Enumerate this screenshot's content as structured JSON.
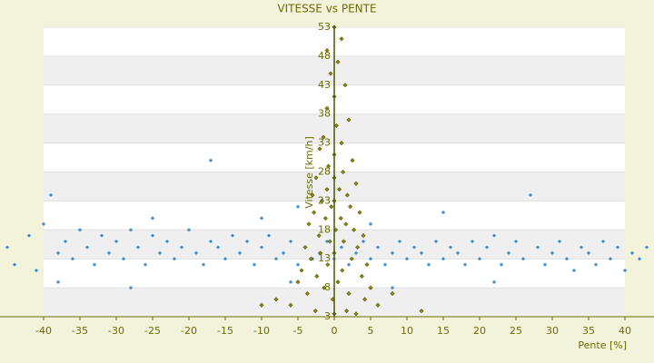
{
  "chart_data": {
    "type": "scatter",
    "title": "VITESSE vs PENTE",
    "x_label": "Pente [%]",
    "y_label": "Vitesse [km/h]",
    "xlim": [
      -46,
      44
    ],
    "xticks": [
      -40,
      -35,
      -30,
      -25,
      -20,
      -15,
      -10,
      -5,
      0,
      5,
      10,
      15,
      20,
      25,
      30,
      35,
      40
    ],
    "ylim": [
      3,
      53
    ],
    "yticks": [
      3,
      8,
      13,
      18,
      23,
      28,
      33,
      38,
      43,
      48,
      53
    ],
    "grid": true,
    "series": [
      {
        "color": "#3a8fd8",
        "x": [
          -45,
          -44,
          -42,
          -41,
          -40,
          -39,
          -38,
          -37,
          -36,
          -35,
          -34,
          -33,
          -32,
          -31,
          -30,
          -29,
          -28,
          -27,
          -26,
          -25,
          -24,
          -23,
          -22,
          -21,
          -20,
          -19,
          -18,
          -17,
          -17,
          -16,
          -15,
          -14,
          -13,
          -12,
          -11,
          -10,
          -9,
          -8,
          -7,
          -6,
          -5,
          -4,
          -3,
          -2,
          -1,
          0,
          1,
          2,
          3,
          4,
          5,
          6,
          7,
          8,
          9,
          10,
          11,
          12,
          13,
          14,
          15,
          16,
          17,
          18,
          19,
          20,
          21,
          22,
          23,
          24,
          25,
          26,
          27,
          28,
          29,
          30,
          31,
          32,
          33,
          34,
          35,
          36,
          37,
          38,
          39,
          40,
          41,
          42,
          43,
          -10,
          -5,
          5,
          15,
          -25,
          -38,
          -28,
          -6,
          8,
          22
        ],
        "values": [
          15,
          12,
          17,
          11,
          19,
          24,
          14,
          16,
          13,
          18,
          15,
          12,
          17,
          14,
          16,
          13,
          18,
          15,
          12,
          17,
          14,
          16,
          13,
          15,
          18,
          14,
          12,
          16,
          30,
          15,
          13,
          17,
          14,
          16,
          12,
          15,
          17,
          13,
          14,
          16,
          12,
          15,
          13,
          14,
          16,
          13,
          15,
          12,
          14,
          16,
          13,
          15,
          12,
          14,
          16,
          13,
          15,
          14,
          12,
          16,
          13,
          15,
          14,
          12,
          16,
          13,
          15,
          17,
          12,
          14,
          16,
          13,
          24,
          15,
          12,
          14,
          16,
          13,
          11,
          15,
          14,
          12,
          16,
          13,
          15,
          11,
          14,
          13,
          15,
          20,
          22,
          19,
          21,
          20,
          9,
          8,
          9,
          8,
          9
        ]
      },
      {
        "color": "#8a8a00",
        "x": [
          0,
          1,
          -1,
          0.5,
          -0.5,
          1.5,
          0,
          -1,
          2,
          0.3,
          -1.5,
          1,
          -2,
          0,
          2.5,
          -0.8,
          1.2,
          -2.5,
          0,
          3,
          -1,
          0.7,
          -3,
          1.8,
          0,
          -1.7,
          2.2,
          -0.4,
          3.5,
          -2.8,
          0.9,
          -1.2,
          1.6,
          -3.5,
          0.2,
          2.7,
          -2.1,
          4,
          -0.6,
          1.3,
          -4,
          3.2,
          0,
          -1.9,
          2.4,
          -3.2,
          4.5,
          -0.9,
          1.1,
          -4.5,
          3.8,
          -2.4,
          0.5,
          -5,
          5,
          -1.4,
          2,
          -3.7,
          4.2,
          -0.2,
          -6,
          6,
          1.7,
          -2.6,
          0,
          3,
          -8,
          8,
          -10,
          12
        ],
        "values": [
          53,
          51,
          49,
          47,
          45,
          43,
          41,
          39,
          37,
          36,
          34,
          33,
          32,
          31,
          30,
          29,
          28,
          27,
          27,
          26,
          25,
          25,
          24,
          24,
          23,
          23,
          22,
          22,
          21,
          21,
          20,
          20,
          19,
          19,
          18,
          18,
          17,
          17,
          16,
          16,
          15,
          15,
          14,
          14,
          13,
          13,
          12,
          12,
          11,
          11,
          10,
          10,
          9,
          9,
          8,
          8,
          7,
          7,
          6,
          6,
          5,
          5,
          4,
          4,
          3.5,
          3.5,
          6,
          7,
          5,
          4
        ]
      }
    ]
  }
}
